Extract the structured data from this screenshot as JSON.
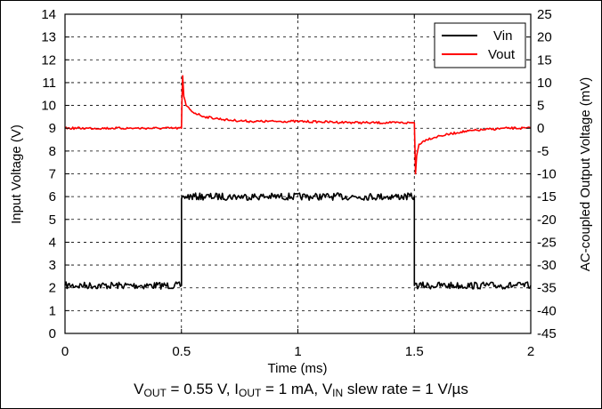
{
  "chart_data": {
    "type": "line",
    "title": "",
    "xlabel": "Time (ms)",
    "ylabel_left": "Input Voltage (V)",
    "ylabel_right": "AC-coupled Output Voltage (mV)",
    "xlim": [
      0,
      2
    ],
    "ylim_left": [
      0,
      14
    ],
    "ylim_right": [
      -45,
      25
    ],
    "x_ticks": [
      "0",
      "0.5",
      "1",
      "1.5",
      "2"
    ],
    "y_ticks_left": [
      "0",
      "1",
      "2",
      "3",
      "4",
      "5",
      "6",
      "7",
      "8",
      "9",
      "10",
      "11",
      "12",
      "13",
      "14"
    ],
    "y_ticks_right": [
      "-45",
      "-40",
      "-35",
      "-30",
      "-25",
      "-20",
      "-15",
      "-10",
      "-5",
      "0",
      "5",
      "10",
      "15",
      "20",
      "25"
    ],
    "grid": true,
    "legend_position": "top-right",
    "series": [
      {
        "name": "Vin",
        "color": "#000000",
        "axis": "left",
        "x": [
          0,
          0.5,
          0.5,
          0.51,
          1.5,
          1.5,
          2
        ],
        "y": [
          2.1,
          2.1,
          5.9,
          6.0,
          6.0,
          2.1,
          2.1
        ]
      },
      {
        "name": "Vout",
        "color": "#ff0000",
        "axis": "right",
        "x": [
          0,
          0.1,
          0.2,
          0.3,
          0.4,
          0.5,
          0.502,
          0.505,
          0.51,
          0.52,
          0.55,
          0.6,
          0.7,
          0.8,
          0.9,
          1.0,
          1.1,
          1.2,
          1.3,
          1.4,
          1.5,
          1.502,
          1.505,
          1.51,
          1.52,
          1.55,
          1.6,
          1.7,
          1.8,
          1.9,
          2.0
        ],
        "y": [
          0,
          0,
          0,
          0,
          0,
          0,
          6,
          11.5,
          7,
          5,
          3.5,
          2.5,
          1.8,
          1.5,
          1.5,
          1.5,
          1.4,
          1.3,
          1.2,
          1.2,
          1.2,
          -3,
          -10,
          -6,
          -3.5,
          -2.5,
          -1.8,
          -0.8,
          -0.3,
          0,
          0
        ]
      }
    ]
  },
  "caption": {
    "v": "V",
    "out_sub": "OUT",
    "v_text": " = 0.55 V, ",
    "i": "I",
    "iout_sub": "OUT",
    "i_text": " = 1 mA, ",
    "vin": "V",
    "in_sub": "IN",
    "vin_text": " slew rate = 1 V/µs"
  }
}
